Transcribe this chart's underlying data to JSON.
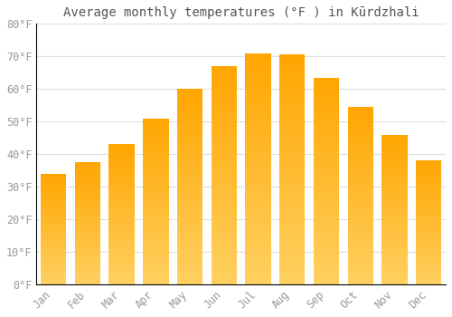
{
  "title": "Average monthly temperatures (°F ) in Kūrdzhali",
  "months": [
    "Jan",
    "Feb",
    "Mar",
    "Apr",
    "May",
    "Jun",
    "Jul",
    "Aug",
    "Sep",
    "Oct",
    "Nov",
    "Dec"
  ],
  "values": [
    34,
    37.5,
    43,
    51,
    60,
    67,
    71,
    70.5,
    63.5,
    54.5,
    46,
    38
  ],
  "bar_color_top": "#FFA500",
  "bar_color_bottom": "#FFD060",
  "ylim": [
    0,
    80
  ],
  "yticks": [
    0,
    10,
    20,
    30,
    40,
    50,
    60,
    70,
    80
  ],
  "background_color": "#FFFFFF",
  "grid_color": "#DDDDDD",
  "font_color": "#999999",
  "title_fontsize": 10,
  "tick_fontsize": 8.5,
  "bar_width": 0.75
}
